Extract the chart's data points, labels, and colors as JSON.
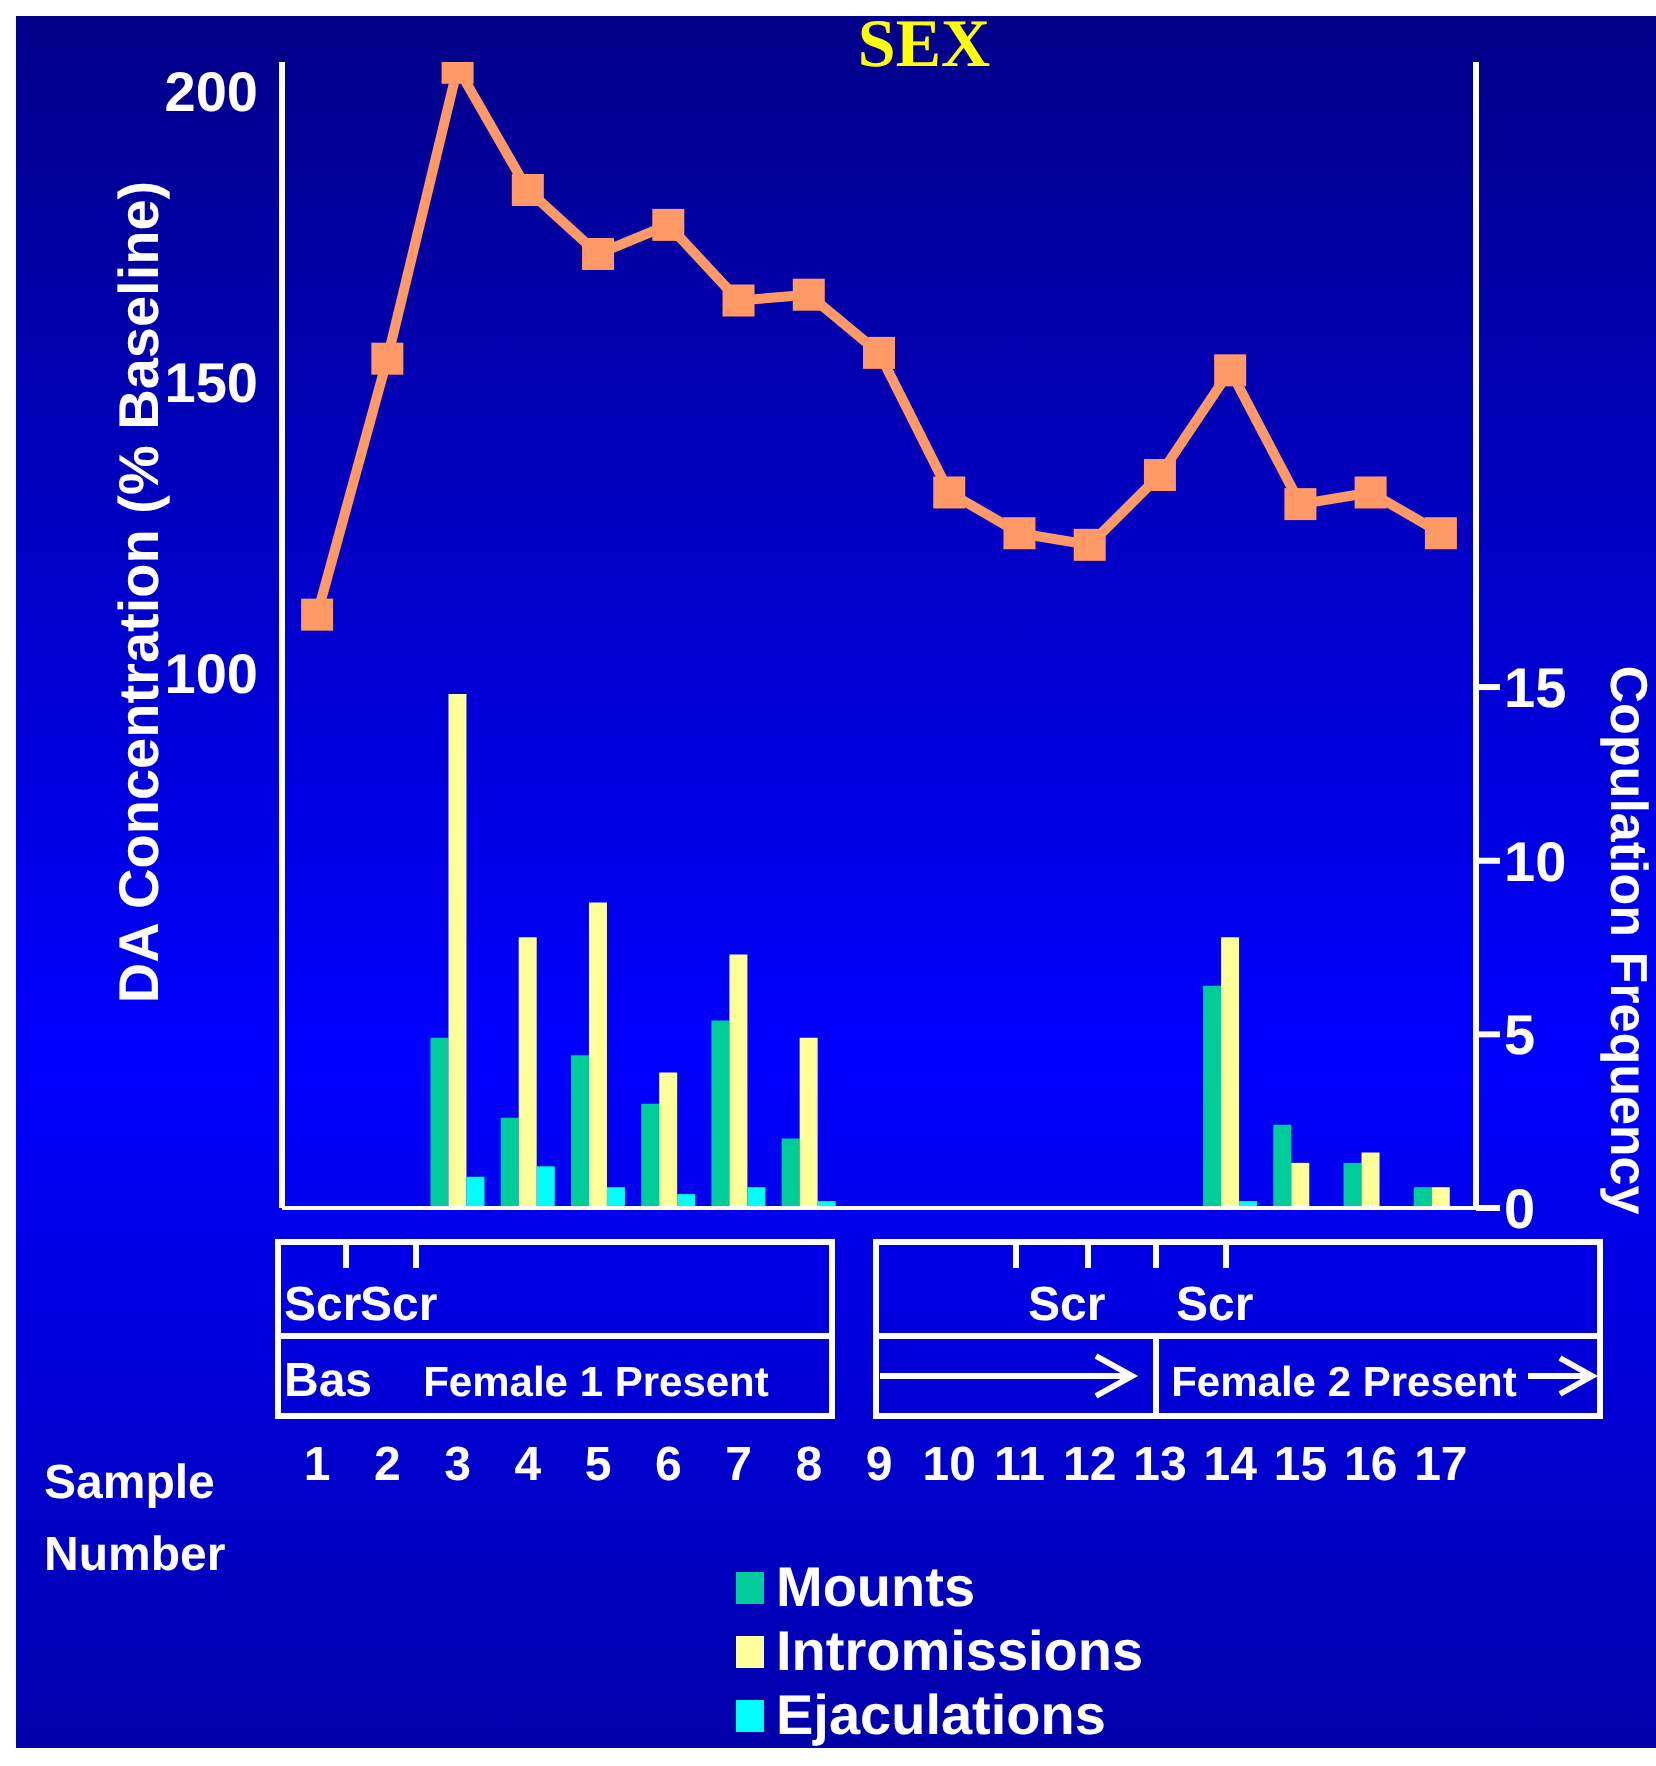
{
  "chart_data": {
    "type": "bar",
    "title": "SEX",
    "xlabel": "Sample Number",
    "ylabel": "DA Concentration (% Baseline)",
    "y2label": "Copulation Frequency",
    "x": [
      1,
      2,
      3,
      4,
      5,
      6,
      7,
      8,
      9,
      10,
      11,
      12,
      13,
      14,
      15,
      16,
      17
    ],
    "xlim": [
      0.5,
      17.5
    ],
    "xticks": [
      1,
      2,
      3,
      4,
      5,
      6,
      7,
      8,
      9,
      10,
      11,
      12,
      13,
      14,
      15,
      16,
      17
    ],
    "series": [
      {
        "type": "line",
        "axis": "y",
        "color": "#ff9966",
        "values": [
          110,
          154,
          204,
          183,
          172,
          177,
          164,
          165,
          155,
          131,
          124,
          122,
          134,
          152,
          129,
          131,
          124
        ]
      },
      {
        "name": "Mounts",
        "axis": "y2",
        "color": "#00cc99",
        "values": [
          0,
          0,
          4.9,
          2.6,
          4.4,
          3.0,
          5.4,
          2.0,
          0,
          0,
          0,
          0,
          0,
          6.4,
          2.4,
          1.3,
          0.6
        ]
      },
      {
        "name": "Intromissions",
        "axis": "y2",
        "color": "#ffff99",
        "values": [
          0,
          0,
          14.8,
          7.8,
          8.8,
          3.9,
          7.3,
          4.9,
          0,
          0,
          0,
          0,
          0,
          7.8,
          1.3,
          1.6,
          0.6
        ]
      },
      {
        "name": "Ejaculations",
        "axis": "y2",
        "color": "#00ffff",
        "values": [
          0,
          0,
          0.9,
          1.2,
          0.6,
          0.4,
          0.6,
          0.2,
          0,
          0,
          0,
          0,
          0,
          0.2,
          0,
          0,
          0
        ]
      }
    ],
    "ylim": [
      8,
      205
    ],
    "yticks": [
      100,
      150,
      200
    ],
    "y2lim": [
      0,
      33
    ],
    "y2ticks": [
      0,
      5,
      10,
      15
    ],
    "annotations": [
      "Scr",
      "Scr",
      "Bas",
      "Female 1 Present",
      "Scr",
      "Scr",
      "Female 2 Present"
    ],
    "legend": "bottom",
    "grid": false,
    "marker": "square",
    "line_style": "solid"
  }
}
